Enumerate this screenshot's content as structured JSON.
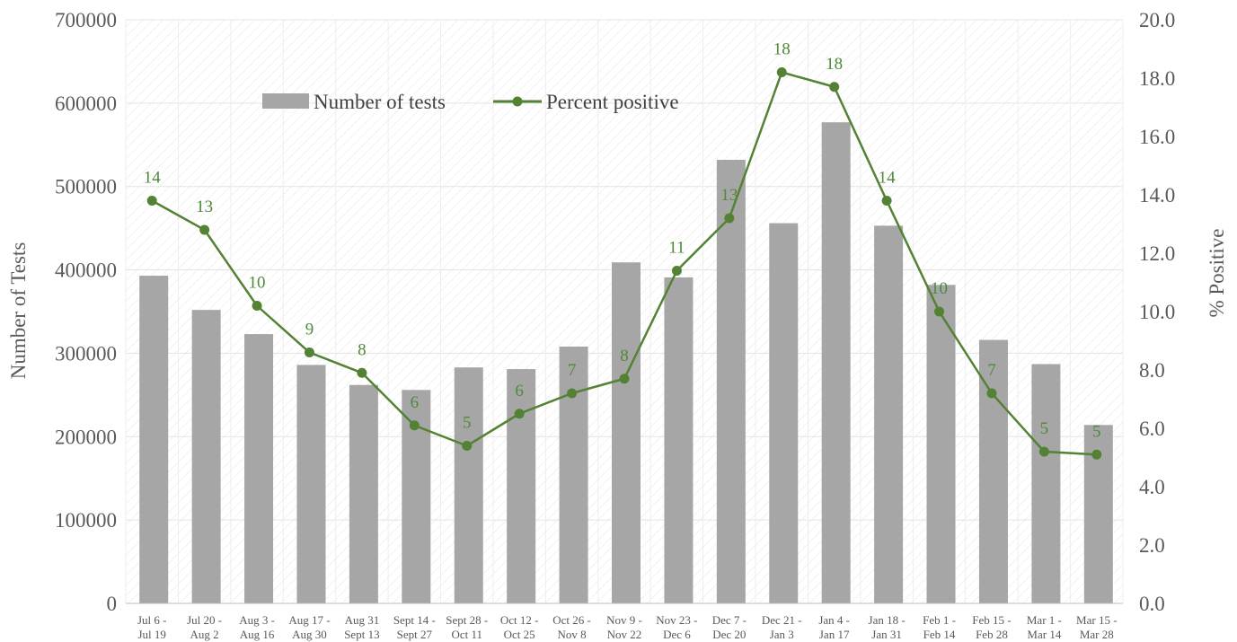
{
  "chart_data": {
    "type": "bar+line",
    "title": "",
    "categories": [
      [
        "Jul 6 -",
        "Jul 19"
      ],
      [
        "Jul 20 -",
        "Aug 2"
      ],
      [
        "Aug 3 -",
        "Aug 16"
      ],
      [
        "Aug 17 -",
        "Aug 30"
      ],
      [
        "Aug 31",
        "Sept 13"
      ],
      [
        "Sept 14 -",
        "Sept 27"
      ],
      [
        "Sept 28 -",
        "Oct 11"
      ],
      [
        "Oct 12 -",
        "Oct 25"
      ],
      [
        "Oct 26 -",
        "Nov 8"
      ],
      [
        "Nov 9 -",
        "Nov 22"
      ],
      [
        "Nov 23 -",
        "Dec 6"
      ],
      [
        "Dec 7 -",
        "Dec 20"
      ],
      [
        "Dec 21 -",
        "Jan 3"
      ],
      [
        "Jan 4 -",
        "Jan 17"
      ],
      [
        "Jan 18 -",
        "Jan 31"
      ],
      [
        "Feb 1 -",
        "Feb 14"
      ],
      [
        "Feb 15 -",
        "Feb 28"
      ],
      [
        "Mar 1 -",
        "Mar 14"
      ],
      [
        "Mar 15 -",
        "Mar 28"
      ]
    ],
    "series": [
      {
        "name": "Number of tests",
        "type": "bar",
        "axis": "left",
        "color": "#a6a6a6",
        "values": [
          393000,
          352000,
          323000,
          286000,
          262000,
          256000,
          283000,
          281000,
          308000,
          409000,
          391000,
          532000,
          456000,
          577000,
          453000,
          382000,
          316000,
          287000,
          214000
        ]
      },
      {
        "name": "Percent positive",
        "type": "line",
        "axis": "right",
        "color": "#548235",
        "values": [
          13.8,
          12.8,
          10.2,
          8.6,
          7.9,
          6.1,
          5.4,
          6.5,
          7.2,
          7.7,
          11.4,
          13.2,
          18.2,
          17.7,
          13.8,
          10.0,
          7.2,
          5.2,
          5.1
        ],
        "data_labels": [
          "14",
          "13",
          "10",
          "9",
          "8",
          "6",
          "5",
          "6",
          "7",
          "8",
          "11",
          "13",
          "18",
          "18",
          "14",
          "10",
          "7",
          "5",
          "5"
        ]
      }
    ],
    "y_left": {
      "label": "Number of Tests",
      "ylim": [
        0,
        700000
      ],
      "ticks": [
        "0",
        "100000",
        "200000",
        "300000",
        "400000",
        "500000",
        "600000",
        "700000"
      ]
    },
    "y_right": {
      "label": "% Positive",
      "ylim": [
        0,
        20
      ],
      "ticks": [
        "0.0",
        "2.0",
        "4.0",
        "6.0",
        "8.0",
        "10.0",
        "12.0",
        "14.0",
        "16.0",
        "18.0",
        "20.0"
      ]
    },
    "grid": true,
    "legend": {
      "position": "top-left",
      "items": [
        {
          "label": "Number of tests",
          "marker": "bar",
          "color": "#a6a6a6"
        },
        {
          "label": "Percent positive",
          "marker": "line-dot",
          "color": "#548235"
        }
      ]
    }
  }
}
